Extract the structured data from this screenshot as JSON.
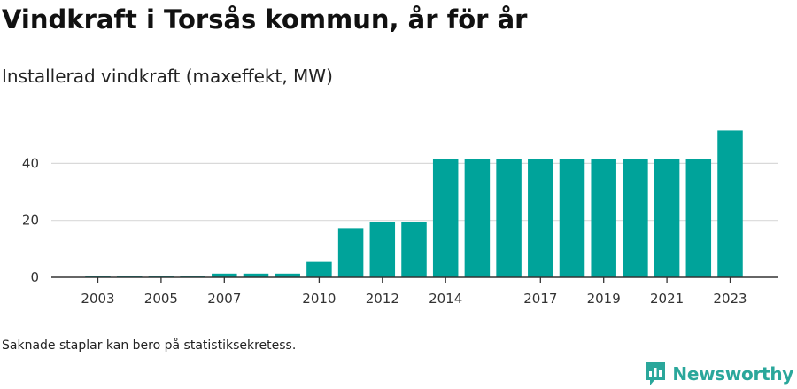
{
  "header": {
    "title": "Vindkraft i Torsås kommun, år för år",
    "subtitle": "Installerad vindkraft (maxeffekt, MW)"
  },
  "footer": {
    "note": "Saknade staplar kan bero på statistiksekretess.",
    "brand": "Newsworthy",
    "brand_icon": "newsworthy-logo-icon"
  },
  "colors": {
    "bar": "#00a39a",
    "grid": "#d9d9d9",
    "axis": "#333333",
    "brand": "#2aa79b"
  },
  "chart_data": {
    "type": "bar",
    "title": "Installerad vindkraft (maxeffekt, MW)",
    "xlabel": "",
    "ylabel": "",
    "categories": [
      "2003",
      "2004",
      "2005",
      "2006",
      "2007",
      "2008",
      "2009",
      "2010",
      "2011",
      "2012",
      "2013",
      "2014",
      "2015",
      "2016",
      "2017",
      "2018",
      "2019",
      "2020",
      "2021",
      "2022",
      "2023"
    ],
    "values": [
      0.4,
      0.4,
      0.4,
      0.4,
      1.3,
      1.3,
      1.3,
      5.4,
      17.3,
      19.5,
      19.5,
      41.5,
      41.5,
      41.5,
      41.5,
      41.5,
      41.5,
      41.5,
      41.5,
      41.5,
      51.5
    ],
    "x_tick_labels": [
      "2003",
      "2005",
      "2007",
      "2010",
      "2012",
      "2014",
      "2017",
      "2019",
      "2021",
      "2023"
    ],
    "y_ticks": [
      0,
      20,
      40
    ],
    "ylim": [
      0,
      55
    ],
    "grid": true,
    "legend": "none"
  }
}
